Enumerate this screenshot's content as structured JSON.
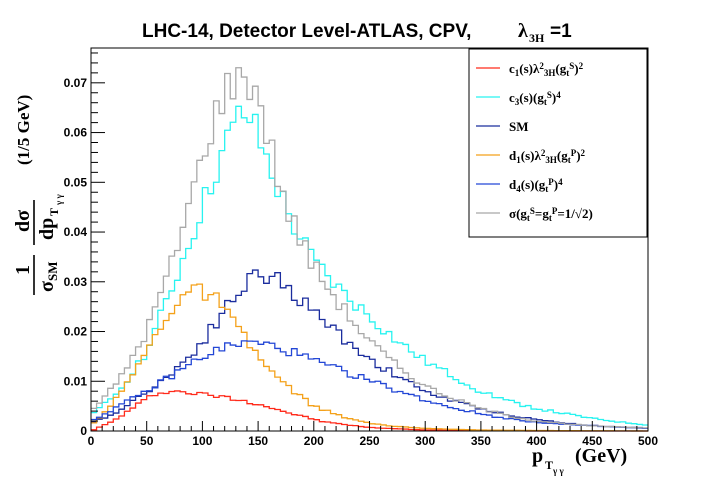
{
  "chart_data": {
    "type": "line",
    "title": "LHC-14, Detector Level-ATLAS, CPV,",
    "title_lambda": "λ",
    "title_lambda_sub": "3H",
    "title_lambda_value": "=1",
    "xlabel": "p",
    "xlabel_sub": "T",
    "xlabel_subsub": "γ γ",
    "xlabel_unit": "(GeV)",
    "ylabel_one": "1",
    "ylabel_sigma_sm": "σ",
    "ylabel_sigma_sub": "SM",
    "ylabel_dsigma": "dσ",
    "ylabel_dp": "dp",
    "ylabel_unit": "(1/5 GeV)",
    "xlim": [
      0,
      500
    ],
    "ylim": [
      0,
      0.077
    ],
    "x_ticks": [
      0,
      50,
      100,
      150,
      200,
      250,
      300,
      350,
      400,
      450,
      500
    ],
    "x_tick_labels": [
      "0",
      "50",
      "100",
      "150",
      "200",
      "250",
      "300",
      "350",
      "400",
      "450",
      "500"
    ],
    "y_ticks": [
      0,
      0.01,
      0.02,
      0.03,
      0.04,
      0.05,
      0.06,
      0.07
    ],
    "y_tick_labels": [
      "0",
      "0.01",
      "0.02",
      "0.03",
      "0.04",
      "0.05",
      "0.06",
      "0.07"
    ],
    "bin_width": 5,
    "series": [
      {
        "name": "c1(s)λ3H²(gt^S)²",
        "legend_parts": [
          [
            "c",
            ""
          ],
          [
            "1",
            "sub"
          ],
          [
            "(s)λ",
            ""
          ],
          [
            "2",
            "sup"
          ],
          [
            "3H",
            "sub"
          ],
          [
            "(g",
            ""
          ],
          [
            "t",
            "sub"
          ],
          [
            "S",
            "sup"
          ],
          [
            ")",
            ""
          ],
          [
            "2",
            "sup"
          ]
        ],
        "color": "#ff2a1a",
        "knots": [
          [
            0,
            0.0
          ],
          [
            20,
            0.002
          ],
          [
            40,
            0.005
          ],
          [
            55,
            0.0072
          ],
          [
            65,
            0.008
          ],
          [
            80,
            0.0079
          ],
          [
            100,
            0.0074
          ],
          [
            120,
            0.0068
          ],
          [
            150,
            0.0055
          ],
          [
            180,
            0.0035
          ],
          [
            210,
            0.0018
          ],
          [
            250,
            0.0007
          ],
          [
            300,
            0.0002
          ],
          [
            350,
            0.0001
          ],
          [
            400,
            0.0
          ],
          [
            500,
            0.0
          ]
        ]
      },
      {
        "name": "c3(s)(gt^S)⁴",
        "legend_parts": [
          [
            "c",
            ""
          ],
          [
            "3",
            "sub"
          ],
          [
            "(s)(g",
            ""
          ],
          [
            "t",
            "sub"
          ],
          [
            "S",
            "sup"
          ],
          [
            ")",
            ""
          ],
          [
            "4",
            "sup"
          ]
        ],
        "color": "#27f3f0",
        "knots": [
          [
            0,
            0.003
          ],
          [
            25,
            0.008
          ],
          [
            50,
            0.016
          ],
          [
            75,
            0.03
          ],
          [
            100,
            0.045
          ],
          [
            120,
            0.057
          ],
          [
            135,
            0.064
          ],
          [
            145,
            0.062
          ],
          [
            160,
            0.053
          ],
          [
            180,
            0.042
          ],
          [
            200,
            0.034
          ],
          [
            225,
            0.028
          ],
          [
            250,
            0.023
          ],
          [
            275,
            0.018
          ],
          [
            300,
            0.014
          ],
          [
            325,
            0.011
          ],
          [
            350,
            0.008
          ],
          [
            375,
            0.006
          ],
          [
            400,
            0.0045
          ],
          [
            425,
            0.0035
          ],
          [
            450,
            0.0025
          ],
          [
            475,
            0.0018
          ],
          [
            500,
            0.0012
          ]
        ]
      },
      {
        "name": "SM",
        "legend_parts": [
          [
            "SM",
            ""
          ]
        ],
        "color": "#1b2d9e",
        "knots": [
          [
            0,
            0.0015
          ],
          [
            25,
            0.004
          ],
          [
            50,
            0.008
          ],
          [
            75,
            0.012
          ],
          [
            100,
            0.018
          ],
          [
            125,
            0.026
          ],
          [
            145,
            0.031
          ],
          [
            160,
            0.0315
          ],
          [
            175,
            0.029
          ],
          [
            200,
            0.024
          ],
          [
            225,
            0.019
          ],
          [
            250,
            0.0145
          ],
          [
            275,
            0.011
          ],
          [
            300,
            0.008
          ],
          [
            325,
            0.006
          ],
          [
            350,
            0.0045
          ],
          [
            375,
            0.0032
          ],
          [
            400,
            0.0023
          ],
          [
            425,
            0.0016
          ],
          [
            450,
            0.0011
          ],
          [
            475,
            0.0008
          ],
          [
            500,
            0.0006
          ]
        ]
      },
      {
        "name": "d1(s)λ3H²(gt^P)²",
        "legend_parts": [
          [
            "d",
            ""
          ],
          [
            "1",
            "sub"
          ],
          [
            "(s)λ",
            ""
          ],
          [
            "2",
            "sup"
          ],
          [
            "3H",
            "sub"
          ],
          [
            "(g",
            ""
          ],
          [
            "t",
            "sub"
          ],
          [
            "P",
            "sup"
          ],
          [
            ")",
            ""
          ],
          [
            "2",
            "sup"
          ]
        ],
        "color": "#f4a11a",
        "knots": [
          [
            0,
            0.001
          ],
          [
            25,
            0.007
          ],
          [
            50,
            0.016
          ],
          [
            70,
            0.024
          ],
          [
            85,
            0.028
          ],
          [
            100,
            0.028
          ],
          [
            115,
            0.026
          ],
          [
            130,
            0.021
          ],
          [
            150,
            0.015
          ],
          [
            170,
            0.01
          ],
          [
            200,
            0.005
          ],
          [
            230,
            0.0025
          ],
          [
            260,
            0.0012
          ],
          [
            300,
            0.0005
          ],
          [
            350,
            0.0002
          ],
          [
            400,
            0.0001
          ],
          [
            500,
            0.0
          ]
        ]
      },
      {
        "name": "d4(s)(gt^P)⁴",
        "legend_parts": [
          [
            "d",
            ""
          ],
          [
            "4",
            "sub"
          ],
          [
            "(s)(g",
            ""
          ],
          [
            "t",
            "sub"
          ],
          [
            "P",
            "sup"
          ],
          [
            ")",
            ""
          ],
          [
            "4",
            "sup"
          ]
        ],
        "color": "#2347d6",
        "knots": [
          [
            0,
            0.002
          ],
          [
            25,
            0.005
          ],
          [
            50,
            0.008
          ],
          [
            75,
            0.0115
          ],
          [
            100,
            0.015
          ],
          [
            125,
            0.0172
          ],
          [
            145,
            0.0178
          ],
          [
            165,
            0.017
          ],
          [
            185,
            0.0155
          ],
          [
            210,
            0.0132
          ],
          [
            240,
            0.011
          ],
          [
            270,
            0.0085
          ],
          [
            300,
            0.0062
          ],
          [
            330,
            0.0044
          ],
          [
            360,
            0.003
          ],
          [
            390,
            0.002
          ],
          [
            420,
            0.0014
          ],
          [
            450,
            0.001
          ],
          [
            480,
            0.0007
          ],
          [
            500,
            0.0005
          ]
        ]
      },
      {
        "name": "σ(gt^S=gt^P=1/√2)",
        "legend_parts": [
          [
            "σ(g",
            ""
          ],
          [
            "t",
            "sub"
          ],
          [
            "S",
            "sup"
          ],
          [
            "=g",
            ""
          ],
          [
            "t",
            "sub"
          ],
          [
            "P",
            "sup"
          ],
          [
            "=1/√2)",
            ""
          ]
        ],
        "color": "#a8a8a8",
        "knots": [
          [
            0,
            0.004
          ],
          [
            25,
            0.01
          ],
          [
            50,
            0.02
          ],
          [
            75,
            0.035
          ],
          [
            95,
            0.051
          ],
          [
            110,
            0.063
          ],
          [
            125,
            0.07
          ],
          [
            140,
            0.071
          ],
          [
            150,
            0.068
          ],
          [
            160,
            0.058
          ],
          [
            175,
            0.045
          ],
          [
            200,
            0.033
          ],
          [
            225,
            0.025
          ],
          [
            250,
            0.018
          ],
          [
            275,
            0.013
          ],
          [
            300,
            0.009
          ],
          [
            325,
            0.0065
          ],
          [
            350,
            0.0045
          ],
          [
            375,
            0.003
          ],
          [
            400,
            0.002
          ],
          [
            450,
            0.001
          ],
          [
            500,
            0.0006
          ]
        ]
      }
    ]
  }
}
